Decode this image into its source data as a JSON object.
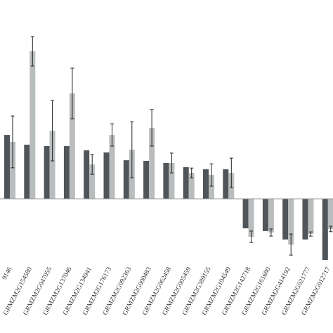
{
  "chart_data": {
    "type": "bar",
    "categories": [
      "9146",
      "GRMZM2G154580",
      "GRMZM2G047055",
      "GRMZM2G137046",
      "GRMZM2G134941",
      "GRMZM2G176173",
      "GRMZM2G092363",
      "GRMZM2G000483",
      "GRMZM2G062458",
      "GRMZM2G005459",
      "GRMZM2G389155",
      "GRMZM2G104549",
      "GRMZM2G142718",
      "GRMZM2G161680",
      "GRMZM2G414192",
      "GRMZM2G021777",
      "GRMZM2G012717"
    ],
    "series": [
      {
        "color": "#4f5558",
        "values": [
          3.03,
          2.57,
          2.5,
          2.5,
          2.3,
          2.2,
          1.83,
          1.8,
          1.7,
          1.5,
          1.4,
          1.4,
          -1.4,
          -1.53,
          -1.93,
          -1.93,
          -2.9
        ]
      },
      {
        "color": "#b9bdbd",
        "values": [
          2.7,
          7.0,
          3.23,
          5.0,
          1.63,
          3.03,
          2.33,
          3.37,
          1.7,
          1.23,
          1.13,
          1.23,
          -1.8,
          -1.6,
          -2.17,
          -1.67,
          -1.43
        ],
        "errors": [
          1.23,
          0.7,
          1.43,
          1.2,
          0.47,
          0.53,
          1.33,
          0.87,
          0.47,
          0.23,
          0.53,
          0.7,
          0.27,
          0.17,
          0.5,
          0.1,
          0.13
        ]
      }
    ],
    "ylim": [
      -3,
      9
    ]
  }
}
